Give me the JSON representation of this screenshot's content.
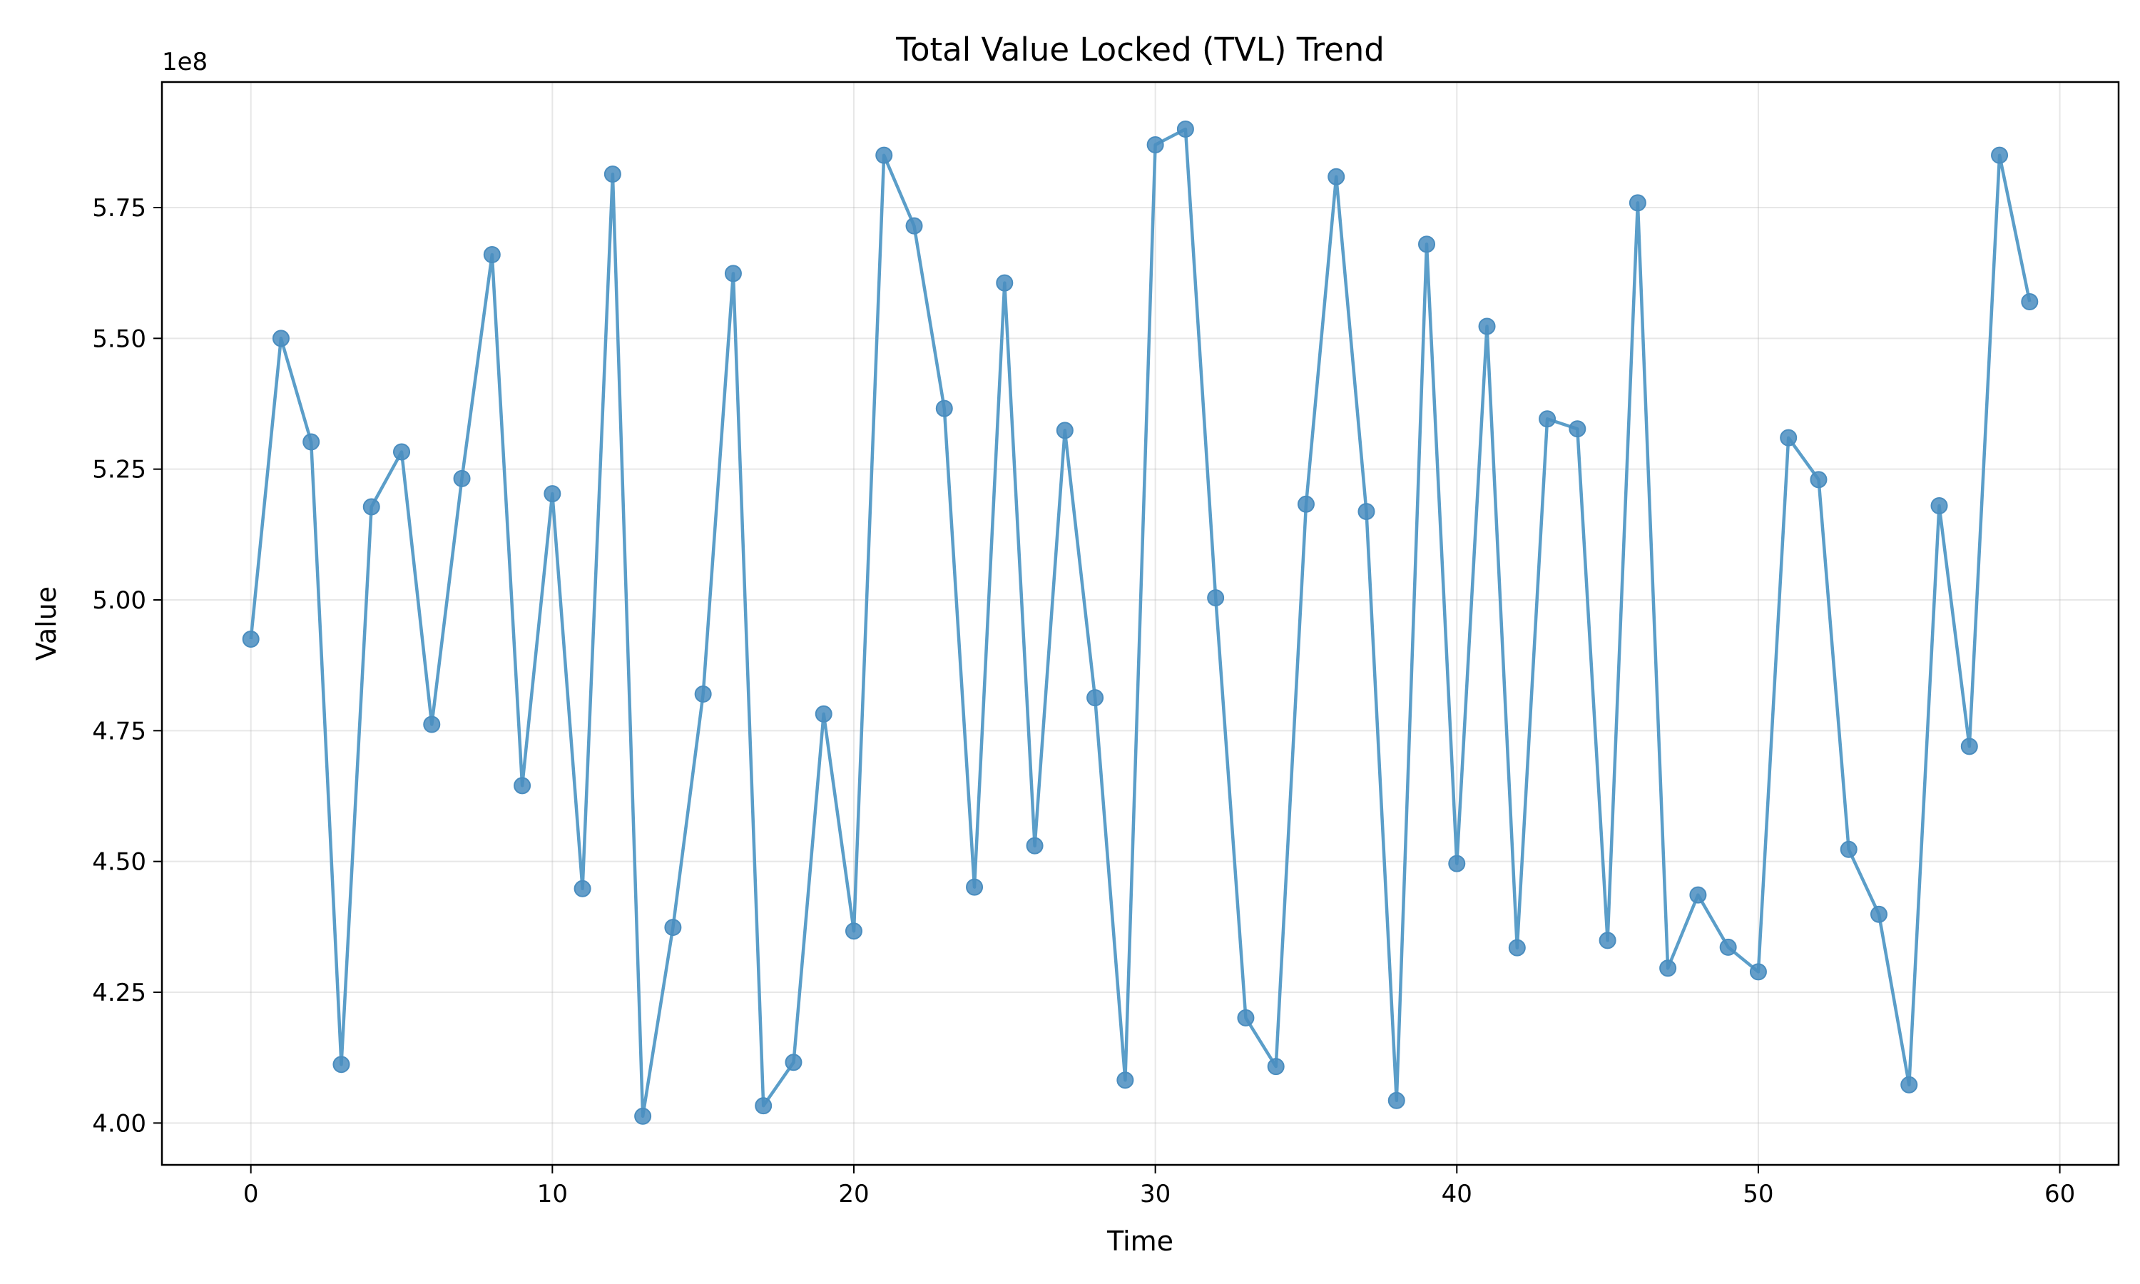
{
  "chart_data": {
    "type": "line",
    "title": "Total Value Locked (TVL) Trend",
    "xlabel": "Time",
    "ylabel": "Value",
    "y_offset_label": "1e8",
    "y_scale": 100000000,
    "xlim": [
      -2.95,
      61.95
    ],
    "ylim": [
      392000000,
      599000000
    ],
    "x_ticks": [
      0,
      10,
      20,
      30,
      40,
      50,
      60
    ],
    "y_ticks": [
      400000000,
      425000000,
      450000000,
      475000000,
      500000000,
      525000000,
      550000000,
      575000000
    ],
    "y_tick_labels": [
      "4.00",
      "4.25",
      "4.50",
      "4.75",
      "5.00",
      "5.25",
      "5.50",
      "5.75"
    ],
    "grid": true,
    "line_color": "#5b9ec9",
    "marker_color": "#4a8dbf",
    "series": [
      {
        "x": [
          0,
          1,
          2,
          3,
          4,
          5,
          6,
          7,
          8,
          9,
          10,
          11,
          12,
          13,
          14,
          15,
          16,
          17,
          18,
          19,
          20,
          21,
          22,
          23,
          24,
          25,
          26,
          27,
          28,
          29,
          30,
          31,
          32,
          33,
          34,
          35,
          36,
          37,
          38,
          39,
          40,
          41,
          42,
          43,
          44,
          45,
          46,
          47,
          48,
          49,
          50,
          51,
          52,
          53,
          54,
          55,
          56,
          57,
          58,
          59
        ],
        "values": [
          492500000,
          550000000,
          530200000,
          411200000,
          517800000,
          528300000,
          476200000,
          523200000,
          566000000,
          464500000,
          520300000,
          444800000,
          581400000,
          401300000,
          437400000,
          482000000,
          562400000,
          403300000,
          411600000,
          478200000,
          436700000,
          585000000,
          571500000,
          536600000,
          445100000,
          560600000,
          453000000,
          532400000,
          481300000,
          408200000,
          587000000,
          590000000,
          500400000,
          420100000,
          410800000,
          518300000,
          580900000,
          516900000,
          404300000,
          568000000,
          449600000,
          552300000,
          433500000,
          534600000,
          532700000,
          434900000,
          575900000,
          429600000,
          443600000,
          433600000,
          428900000,
          531000000,
          523000000,
          452300000,
          439900000,
          407300000,
          518000000,
          472000000,
          585000000,
          557000000
        ]
      }
    ]
  }
}
